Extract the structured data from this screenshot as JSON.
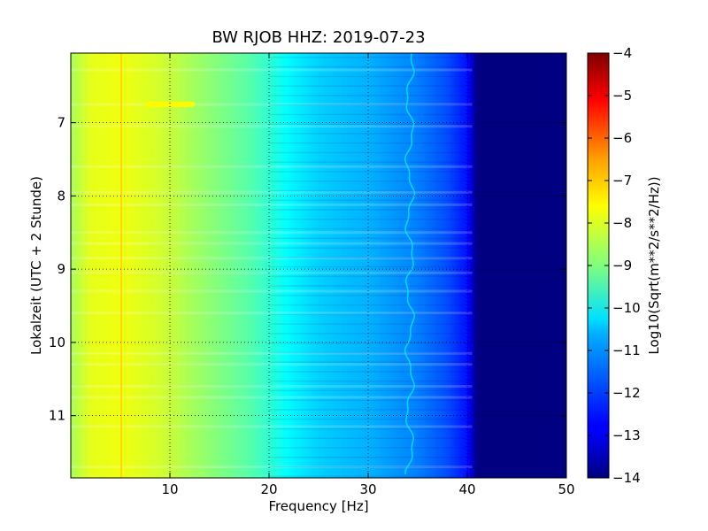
{
  "chart_data": {
    "type": "heatmap",
    "title": "BW RJOB HHZ: 2019-07-23",
    "xlabel": "Frequency [Hz]",
    "ylabel": "Lokalzeit (UTC + 2 Stunde)",
    "colorbar_label": "Log10(Sqrt(m**2/s**2/Hz))",
    "xlim": [
      0,
      50
    ],
    "ylim": [
      11.85,
      6.05
    ],
    "x_ticks": [
      10,
      20,
      30,
      40,
      50
    ],
    "x_tick_labels": [
      "10",
      "20",
      "30",
      "40",
      "50"
    ],
    "y_ticks": [
      7,
      8,
      9,
      10,
      11
    ],
    "y_tick_labels": [
      "7",
      "8",
      "9",
      "10",
      "11"
    ],
    "color_range": [
      -14,
      -4
    ],
    "colorbar_ticks": [
      -4,
      -5,
      -6,
      -7,
      -8,
      -9,
      -10,
      -11,
      -12,
      -13,
      -14
    ],
    "colorbar_tick_labels": [
      "−4",
      "−5",
      "−6",
      "−7",
      "−8",
      "−9",
      "−10",
      "−11",
      "−12",
      "−13",
      "−14"
    ],
    "colormap": "jet",
    "grid": true,
    "profile": {
      "frequency": [
        0,
        2,
        5,
        8,
        10,
        12,
        15,
        18,
        20,
        22,
        25,
        28,
        30,
        32,
        35,
        38,
        40,
        41,
        45,
        50
      ],
      "log_amplitude": [
        -8.6,
        -8.0,
        -7.9,
        -8.1,
        -8.3,
        -8.6,
        -9.0,
        -9.4,
        -9.8,
        -10.3,
        -10.7,
        -10.9,
        -11.0,
        -11.2,
        -11.5,
        -12.0,
        -12.6,
        -14.0,
        -14.0,
        -14.0
      ]
    },
    "features": {
      "line_5hz": {
        "frequency": 5.1,
        "level": -7.3
      },
      "line_34hz": {
        "frequency": 34.2,
        "level": -10.3
      },
      "burst_10hz": {
        "time": 6.75,
        "frequency_range": [
          7.5,
          12.5
        ],
        "level": -7.7
      }
    },
    "bright_rows": [
      6.28,
      6.75,
      7.05,
      7.6,
      7.95,
      8.12,
      8.5,
      8.65,
      8.85,
      9.05,
      9.3,
      9.6,
      10.15,
      10.3,
      10.6,
      10.75,
      11.15,
      11.7
    ]
  }
}
